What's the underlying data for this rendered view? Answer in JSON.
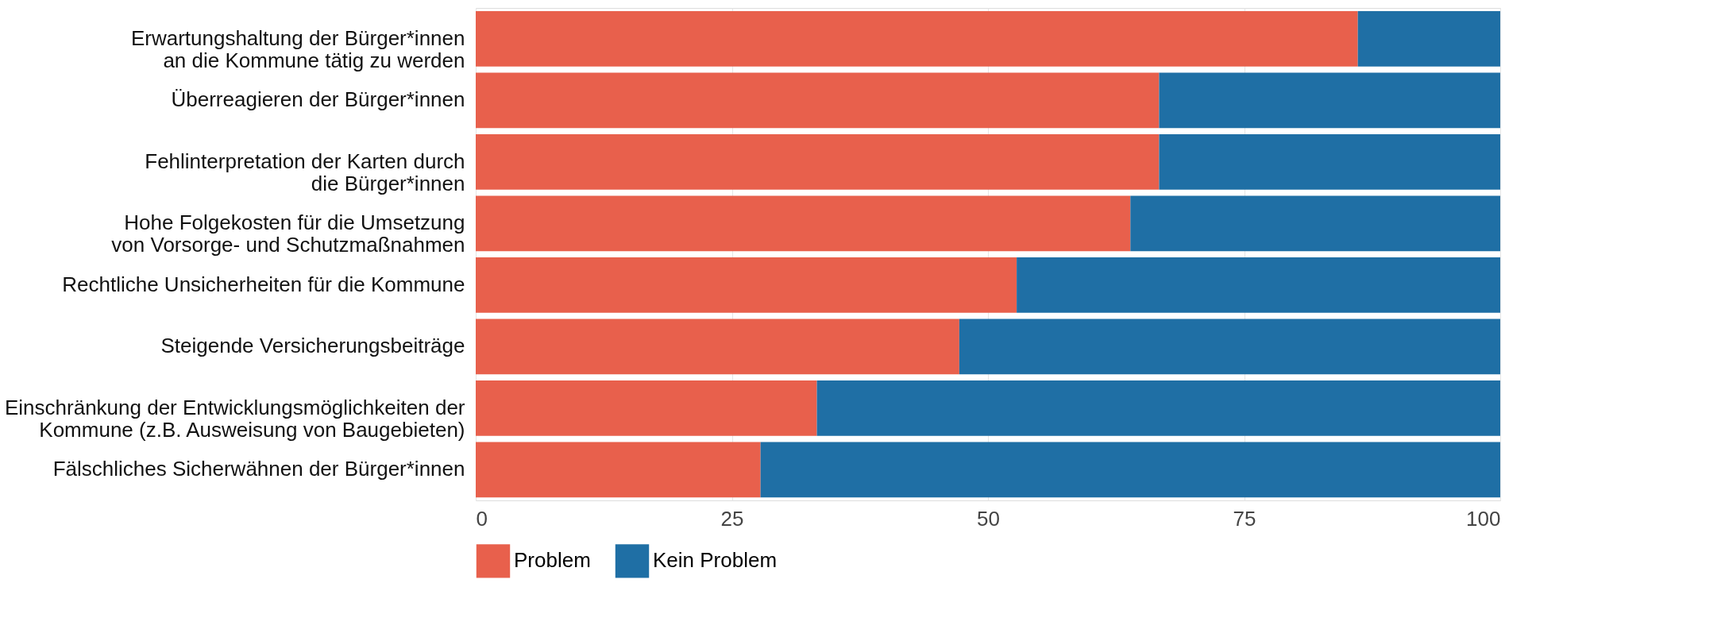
{
  "chart_data": {
    "type": "bar",
    "orientation": "horizontal",
    "stacked": true,
    "categories": [
      "Erwartungshaltung der Bürger*innen\nan die Kommune tätig zu werden",
      "Überreagieren der Bürger*innen",
      "Fehlinterpretation der Karten durch\ndie Bürger*innen",
      "Hohe Folgekosten für die Umsetzung\nvon Vorsorge- und Schutzmaßnahmen",
      "Rechtliche Unsicherheiten für die Kommune",
      "Steigende Versicherungsbeiträge",
      "Einschränkung der Entwicklungsmöglichkeiten der\nKommune (z.B. Ausweisung von Baugebieten)",
      "Fälschliches Sicherwähnen der Bürger*innen"
    ],
    "series": [
      {
        "name": "Problem",
        "color": "#e8604c",
        "values": [
          86.1,
          66.7,
          66.7,
          63.9,
          52.8,
          47.2,
          33.3,
          27.8
        ]
      },
      {
        "name": "Kein Problem",
        "color": "#1f6fa5",
        "values": [
          13.9,
          33.3,
          33.3,
          36.1,
          47.2,
          52.8,
          66.7,
          72.2
        ]
      }
    ],
    "xlim": [
      0,
      100
    ],
    "xticks": [
      0,
      25,
      50,
      75,
      100
    ],
    "grid": "x",
    "legend": "bottom left"
  }
}
